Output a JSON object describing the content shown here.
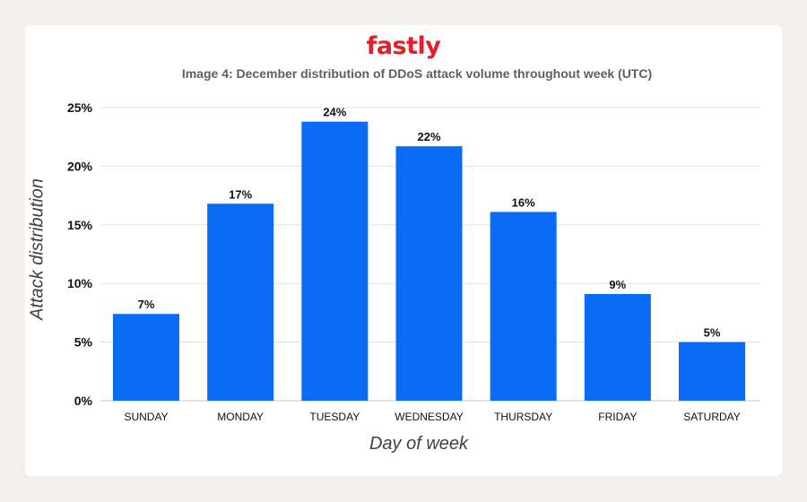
{
  "brand": {
    "logo_text": "fastly",
    "logo_color": "#e41e2b"
  },
  "chart_data": {
    "type": "bar",
    "title": "Image 4: December distribution of DDoS attack volume throughout week (UTC)",
    "xlabel": "Day of week",
    "ylabel": "Attack distribution",
    "categories": [
      "SUNDAY",
      "MONDAY",
      "TUESDAY",
      "WEDNESDAY",
      "THURSDAY",
      "FRIDAY",
      "SATURDAY"
    ],
    "values": [
      7.4,
      16.8,
      23.8,
      21.7,
      16.1,
      9.1,
      5.0
    ],
    "data_labels": [
      "7%",
      "17%",
      "24%",
      "22%",
      "16%",
      "9%",
      "5%"
    ],
    "yticks": [
      0,
      5,
      10,
      15,
      20,
      25
    ],
    "ytick_labels": [
      "0%",
      "5%",
      "10%",
      "15%",
      "20%",
      "25%"
    ],
    "ylim": [
      0,
      25
    ],
    "grid": true,
    "bar_color": "#0a6cf4"
  }
}
